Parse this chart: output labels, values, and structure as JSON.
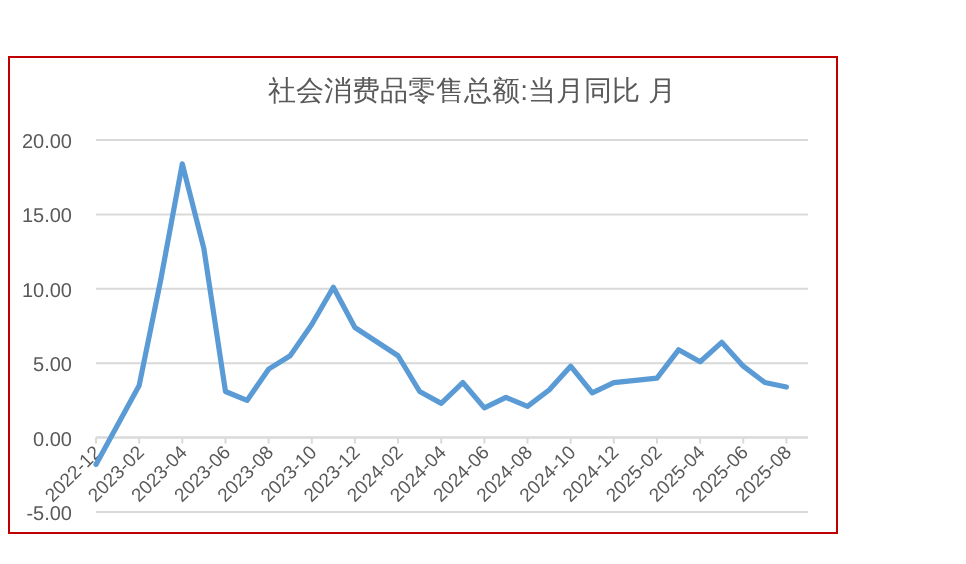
{
  "chart_data": {
    "type": "line",
    "title": "社会消费品零售总额:当月同比 月",
    "x": [
      "2022-12",
      "2023-02",
      "2023-03",
      "2023-04",
      "2023-05",
      "2023-06",
      "2023-07",
      "2023-08",
      "2023-09",
      "2023-10",
      "2023-11",
      "2023-12",
      "2024-02",
      "2024-03",
      "2024-04",
      "2024-05",
      "2024-06",
      "2024-07",
      "2024-08",
      "2024-09",
      "2024-10",
      "2024-11",
      "2024-12",
      "2025-02",
      "2025-03",
      "2025-04",
      "2025-05",
      "2025-06",
      "2025-07",
      "2025-08"
    ],
    "series": [
      {
        "color": "#5b9bd5",
        "values": [
          -1.8,
          3.5,
          10.6,
          18.4,
          12.7,
          3.1,
          2.5,
          4.6,
          5.5,
          7.6,
          10.1,
          7.4,
          5.5,
          3.1,
          2.3,
          3.7,
          2.0,
          2.7,
          2.1,
          3.2,
          4.8,
          3.0,
          3.7,
          4.0,
          5.9,
          5.1,
          6.4,
          4.8,
          3.7,
          3.4
        ]
      }
    ],
    "xlim": [
      "2022-12",
      "2025-09"
    ],
    "xticks": [
      "2022-12",
      "2023-02",
      "2023-04",
      "2023-06",
      "2023-08",
      "2023-10",
      "2023-12",
      "2024-02",
      "2024-04",
      "2024-06",
      "2024-08",
      "2024-10",
      "2024-12",
      "2025-02",
      "2025-04",
      "2025-06",
      "2025-08"
    ],
    "ylim": [
      -5,
      20
    ],
    "yticks": [
      {
        "value": -5,
        "label": "-5.00"
      },
      {
        "value": 0,
        "label": "0.00"
      },
      {
        "value": 5,
        "label": "5.00"
      },
      {
        "value": 10,
        "label": "10.00"
      },
      {
        "value": 15,
        "label": "15.00"
      },
      {
        "value": 20,
        "label": "20.00"
      }
    ],
    "grid": "y",
    "marker": "none",
    "line_style": "solid"
  }
}
